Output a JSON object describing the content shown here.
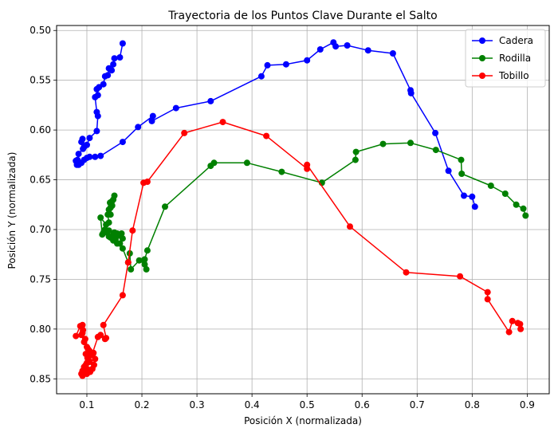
{
  "chart_data": {
    "type": "line",
    "title": "Trayectoria de los Puntos Clave Durante el Salto",
    "xlabel": "Posición X (normalizada)",
    "ylabel": "Posición Y (normalizada)",
    "xlim": [
      0.045,
      0.94
    ],
    "ylim": [
      0.865,
      0.495
    ],
    "y_inverted": true,
    "xticks": [
      0.1,
      0.2,
      0.3,
      0.4,
      0.5,
      0.6,
      0.7,
      0.8,
      0.9
    ],
    "xtick_labels": [
      "0.1",
      "0.2",
      "0.3",
      "0.4",
      "0.5",
      "0.6",
      "0.7",
      "0.8",
      "0.9"
    ],
    "yticks": [
      0.5,
      0.55,
      0.6,
      0.65,
      0.7,
      0.75,
      0.8,
      0.85
    ],
    "ytick_labels": [
      "0.50",
      "0.55",
      "0.60",
      "0.65",
      "0.70",
      "0.75",
      "0.80",
      "0.85"
    ],
    "grid": true,
    "legend_position": "top-right",
    "series": [
      {
        "name": "Cadera",
        "color": "#0000ff",
        "x": [
          0.165,
          0.16,
          0.15,
          0.148,
          0.145,
          0.14,
          0.138,
          0.133,
          0.13,
          0.122,
          0.118,
          0.12,
          0.115,
          0.118,
          0.12,
          0.118,
          0.105,
          0.1,
          0.095,
          0.092,
          0.09,
          0.093,
          0.085,
          0.082,
          0.08,
          0.083,
          0.082,
          0.085,
          0.09,
          0.095,
          0.1,
          0.105,
          0.115,
          0.125,
          0.165,
          0.193,
          0.22,
          0.218,
          0.262,
          0.325,
          0.417,
          0.428,
          0.462,
          0.5,
          0.524,
          0.548,
          0.552,
          0.573,
          0.611,
          0.656,
          0.688,
          0.689,
          0.733,
          0.757,
          0.785,
          0.8,
          0.805
        ],
        "y": [
          0.513,
          0.527,
          0.528,
          0.534,
          0.54,
          0.538,
          0.545,
          0.546,
          0.554,
          0.557,
          0.559,
          0.565,
          0.567,
          0.582,
          0.586,
          0.601,
          0.608,
          0.615,
          0.617,
          0.609,
          0.612,
          0.619,
          0.624,
          0.632,
          0.631,
          0.63,
          0.635,
          0.635,
          0.633,
          0.63,
          0.628,
          0.627,
          0.627,
          0.626,
          0.612,
          0.597,
          0.586,
          0.591,
          0.578,
          0.571,
          0.546,
          0.535,
          0.534,
          0.53,
          0.519,
          0.512,
          0.516,
          0.515,
          0.52,
          0.523,
          0.56,
          0.563,
          0.603,
          0.641,
          0.666,
          0.667,
          0.677
        ]
      },
      {
        "name": "Rodilla",
        "color": "#008000",
        "x": [
          0.15,
          0.148,
          0.145,
          0.146,
          0.142,
          0.143,
          0.14,
          0.143,
          0.138,
          0.14,
          0.135,
          0.125,
          0.128,
          0.13,
          0.133,
          0.136,
          0.14,
          0.148,
          0.15,
          0.153,
          0.155,
          0.158,
          0.163,
          0.165,
          0.16,
          0.155,
          0.152,
          0.148,
          0.143,
          0.14,
          0.165,
          0.175,
          0.178,
          0.18,
          0.195,
          0.203,
          0.205,
          0.208,
          0.205,
          0.21,
          0.242,
          0.325,
          0.331,
          0.391,
          0.454,
          0.527,
          0.588,
          0.589,
          0.638,
          0.688,
          0.734,
          0.78,
          0.781,
          0.834,
          0.86,
          0.88,
          0.893,
          0.897
        ],
        "y": [
          0.666,
          0.67,
          0.672,
          0.676,
          0.673,
          0.678,
          0.68,
          0.685,
          0.685,
          0.693,
          0.695,
          0.688,
          0.705,
          0.703,
          0.7,
          0.703,
          0.701,
          0.705,
          0.703,
          0.704,
          0.704,
          0.706,
          0.704,
          0.709,
          0.714,
          0.714,
          0.71,
          0.711,
          0.708,
          0.707,
          0.719,
          0.733,
          0.724,
          0.74,
          0.731,
          0.731,
          0.735,
          0.74,
          0.73,
          0.721,
          0.677,
          0.636,
          0.633,
          0.633,
          0.642,
          0.653,
          0.63,
          0.622,
          0.614,
          0.613,
          0.62,
          0.63,
          0.644,
          0.656,
          0.664,
          0.675,
          0.679,
          0.686
        ]
      },
      {
        "name": "Tobillo",
        "color": "#ff0000",
        "x": [
          0.08,
          0.088,
          0.092,
          0.093,
          0.09,
          0.092,
          0.095,
          0.097,
          0.1,
          0.098,
          0.102,
          0.105,
          0.108,
          0.11,
          0.112,
          0.115,
          0.113,
          0.11,
          0.106,
          0.103,
          0.1,
          0.104,
          0.101,
          0.098,
          0.095,
          0.092,
          0.09,
          0.092,
          0.095,
          0.1,
          0.102,
          0.105,
          0.12,
          0.125,
          0.133,
          0.135,
          0.13,
          0.165,
          0.175,
          0.183,
          0.203,
          0.21,
          0.277,
          0.347,
          0.426,
          0.5,
          0.5,
          0.578,
          0.68,
          0.778,
          0.828,
          0.828,
          0.867,
          0.873,
          0.883,
          0.887,
          0.888
        ],
        "y": [
          0.807,
          0.797,
          0.796,
          0.801,
          0.806,
          0.804,
          0.813,
          0.81,
          0.818,
          0.825,
          0.82,
          0.822,
          0.825,
          0.826,
          0.824,
          0.83,
          0.836,
          0.84,
          0.843,
          0.841,
          0.845,
          0.832,
          0.829,
          0.836,
          0.838,
          0.842,
          0.845,
          0.847,
          0.84,
          0.834,
          0.829,
          0.833,
          0.808,
          0.806,
          0.81,
          0.809,
          0.796,
          0.766,
          0.733,
          0.701,
          0.653,
          0.652,
          0.603,
          0.592,
          0.606,
          0.639,
          0.635,
          0.697,
          0.743,
          0.747,
          0.763,
          0.77,
          0.803,
          0.792,
          0.794,
          0.795,
          0.8
        ]
      }
    ]
  }
}
